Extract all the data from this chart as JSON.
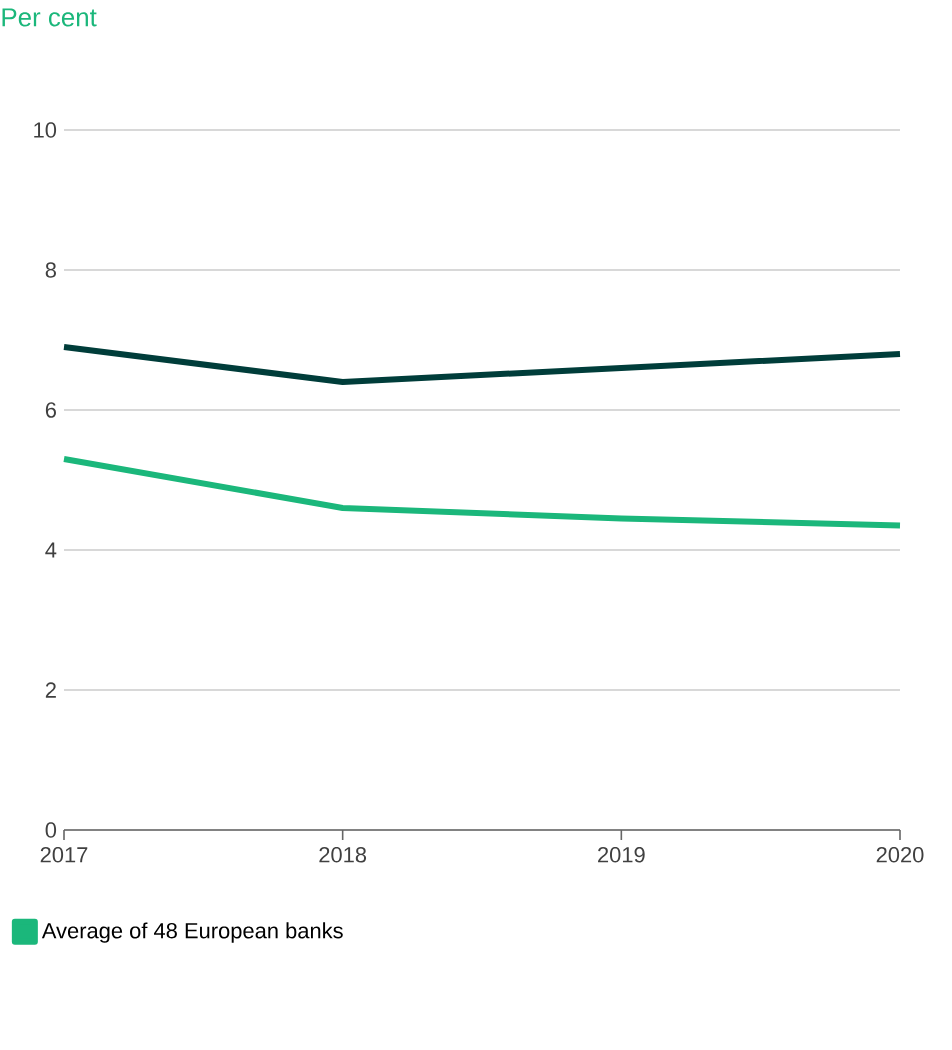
{
  "chart_data": {
    "type": "line",
    "ylabel": "Per cent",
    "x": [
      2017,
      2018,
      2019,
      2020
    ],
    "series": [
      {
        "color": "#003d3a",
        "values": [
          6.9,
          6.4,
          6.6,
          6.8
        ]
      },
      {
        "name": "Average of 48 European banks",
        "color": "#1bb77b",
        "values": [
          5.3,
          4.6,
          4.45,
          4.35
        ]
      }
    ],
    "xlim": [
      2017,
      2020
    ],
    "xticks": [
      2017,
      2018,
      2019,
      2020
    ],
    "ylim": [
      0,
      10
    ],
    "yticks": [
      0,
      2,
      4,
      6,
      8,
      10
    ],
    "grid": "y",
    "legend": "bottom",
    "marker": "none",
    "line_style": "solid"
  }
}
